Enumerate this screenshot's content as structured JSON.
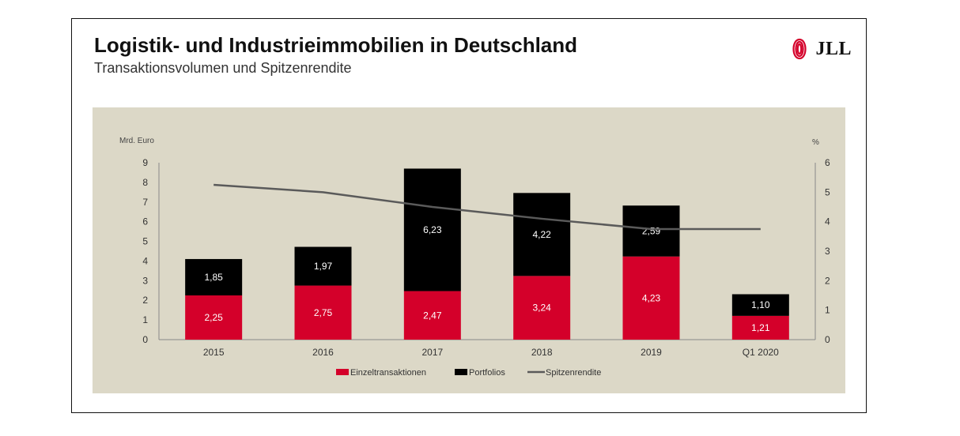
{
  "header": {
    "title": "Logistik- und Industrieimmobilien in Deutschland",
    "subtitle": "Transaktionsvolumen und Spitzenrendite",
    "logo_text": "JLL"
  },
  "colors": {
    "einzel": "#d4002a",
    "portfolios": "#000000",
    "rendite": "#5a5a5a",
    "panel": "#dcd8c7"
  },
  "chart_data": {
    "type": "bar",
    "stacked": true,
    "categories": [
      "2015",
      "2016",
      "2017",
      "2018",
      "2019",
      "Q1 2020"
    ],
    "series": [
      {
        "name": "Einzeltransaktionen",
        "values": [
          2.25,
          2.75,
          2.47,
          3.24,
          4.23,
          1.21
        ],
        "labels": [
          "2,25",
          "2,75",
          "2,47",
          "3,24",
          "4,23",
          "1,21"
        ]
      },
      {
        "name": "Portfolios",
        "values": [
          1.85,
          1.97,
          6.23,
          4.22,
          2.59,
          1.1
        ],
        "labels": [
          "1,85",
          "1,97",
          "6,23",
          "4,22",
          "2,59",
          "1,10"
        ]
      }
    ],
    "line": {
      "name": "Spitzenrendite",
      "axis": "right",
      "values": [
        5.25,
        5.0,
        4.5,
        4.1,
        3.75,
        3.75
      ]
    },
    "ylabel_left": "Mrd. Euro",
    "ylabel_right": "%",
    "ylim_left": [
      0,
      9
    ],
    "ylim_right": [
      0,
      6
    ],
    "yticks_left": [
      "0",
      "1",
      "2",
      "3",
      "4",
      "5",
      "6",
      "7",
      "8",
      "9"
    ],
    "yticks_right": [
      "0",
      "1",
      "2",
      "3",
      "4",
      "5",
      "6"
    ],
    "legend_position": "bottom"
  }
}
